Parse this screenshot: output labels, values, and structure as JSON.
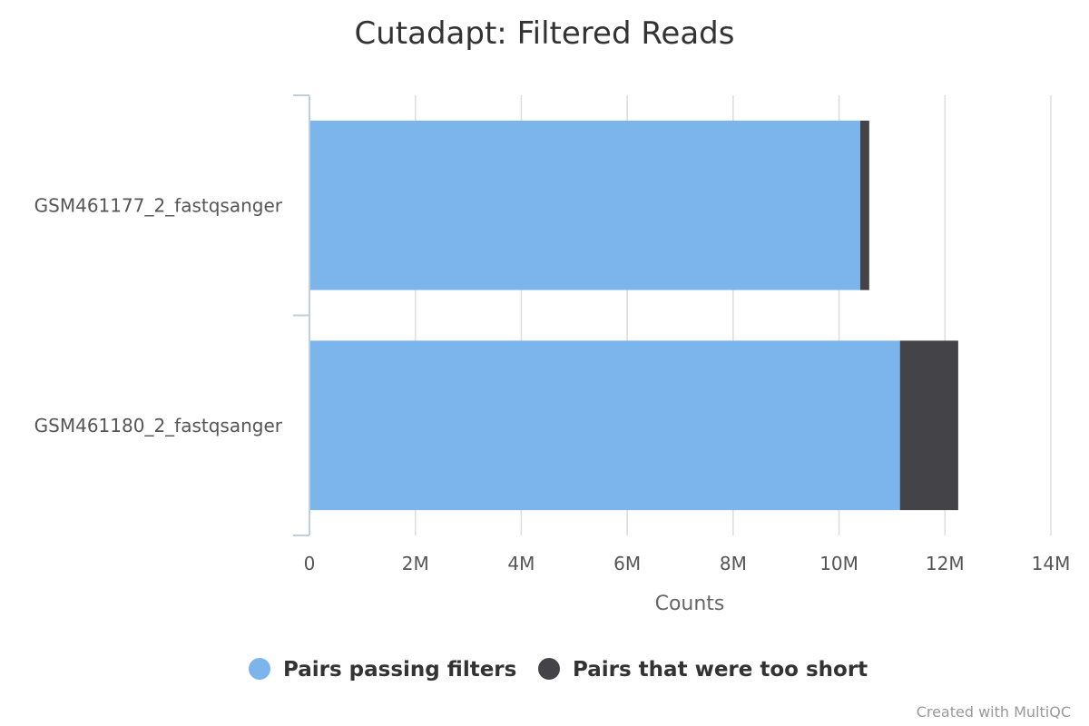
{
  "chart_data": {
    "type": "bar",
    "orientation": "horizontal",
    "stacked": true,
    "title": "Cutadapt: Filtered Reads",
    "xlabel": "Counts",
    "ylabel": "",
    "categories": [
      "GSM461177_2_fastqsanger",
      "GSM461180_2_fastqsanger"
    ],
    "series": [
      {
        "name": "Pairs passing filters",
        "color": "#7cb5ec",
        "values": [
          10400000,
          11150000
        ]
      },
      {
        "name": "Pairs that were too short",
        "color": "#434348",
        "values": [
          170000,
          1100000
        ]
      }
    ],
    "xlim": [
      0,
      14000000
    ],
    "xticks": [
      0,
      2000000,
      4000000,
      6000000,
      8000000,
      10000000,
      12000000,
      14000000
    ],
    "xtick_labels": [
      "0",
      "2M",
      "4M",
      "6M",
      "8M",
      "10M",
      "12M",
      "14M"
    ],
    "grid": true,
    "legend_position": "bottom"
  },
  "credit": "Created with MultiQC"
}
